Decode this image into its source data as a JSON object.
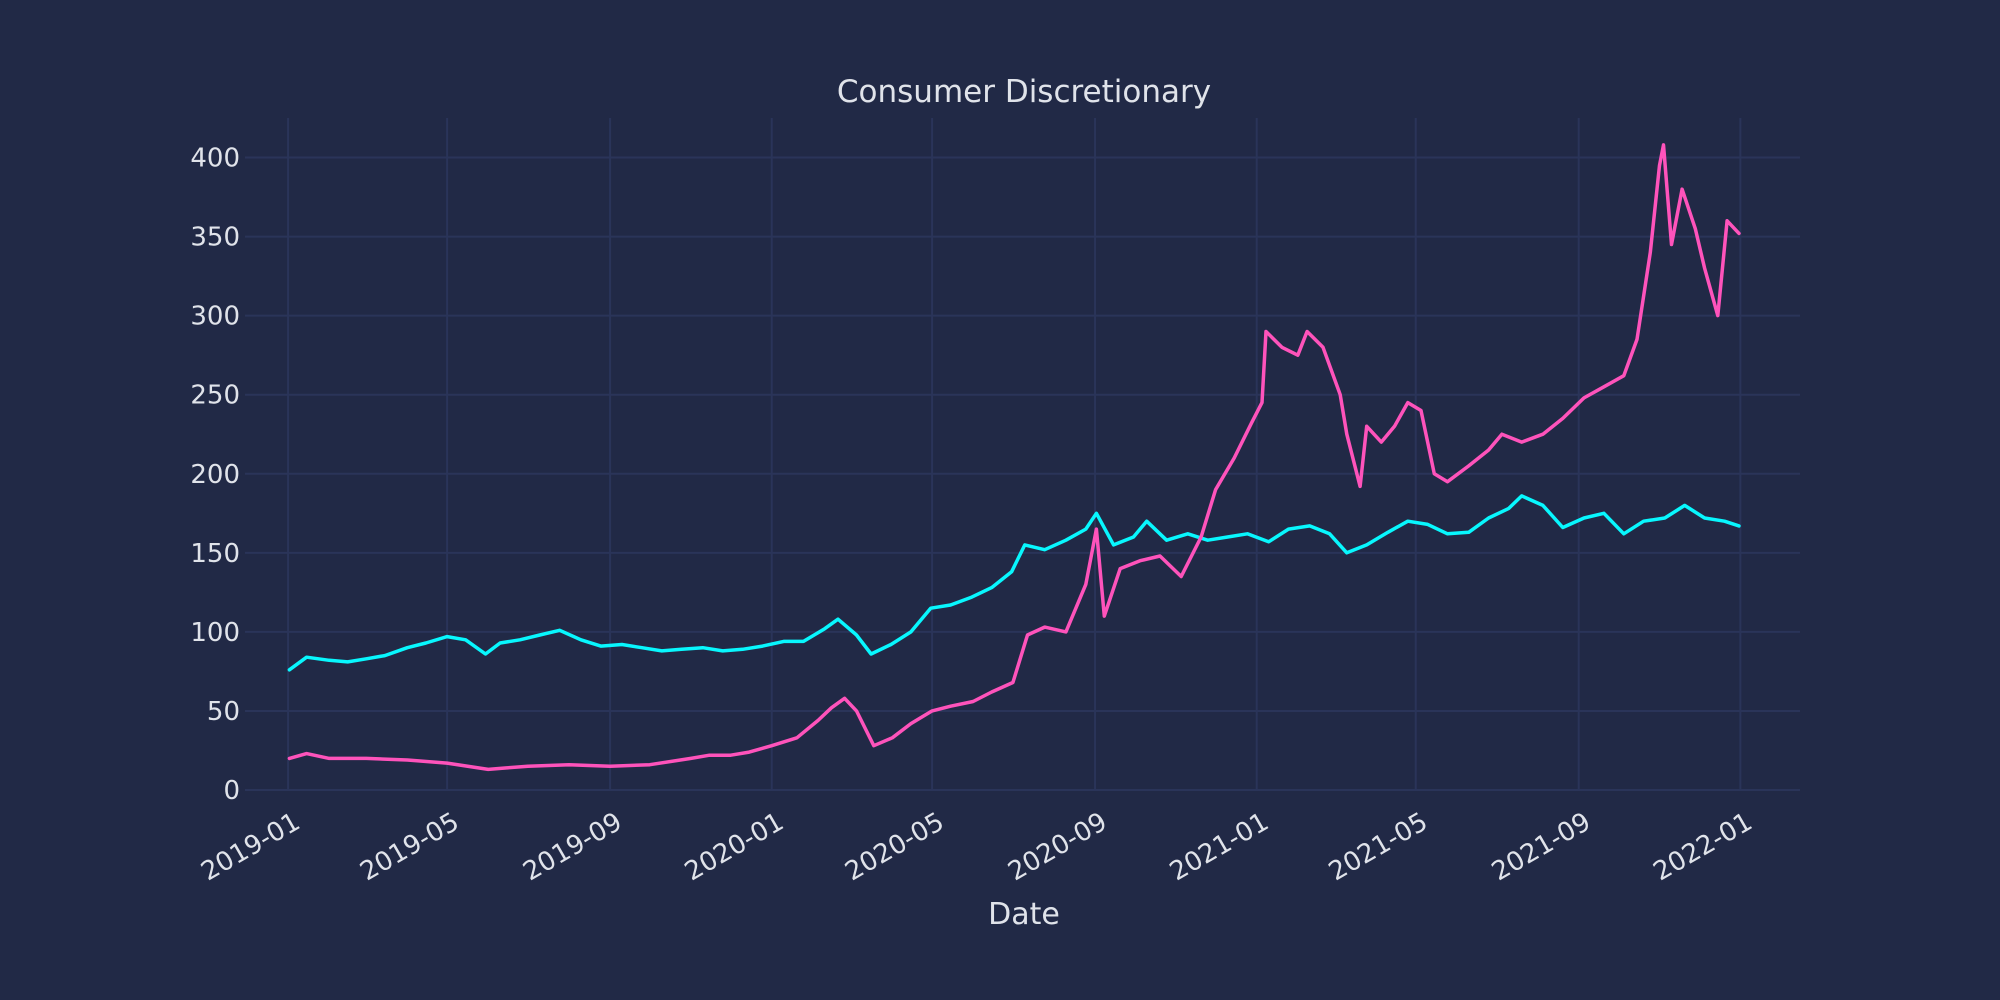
{
  "theme": {
    "background": "#212946",
    "grid": "#2A3459",
    "text": "#E0E3EA"
  },
  "chart_data": {
    "type": "line",
    "title": "Consumer Discretionary",
    "xlabel": "Date",
    "ylabel": "",
    "ylim": [
      0,
      425
    ],
    "xlim": [
      "2018-12-01",
      "2022-02-15"
    ],
    "x_ticks": [
      "2019-01",
      "2019-05",
      "2019-09",
      "2020-01",
      "2020-05",
      "2020-09",
      "2021-01",
      "2021-05",
      "2021-09",
      "2022-01"
    ],
    "y_ticks": [
      0,
      50,
      100,
      150,
      200,
      250,
      300,
      350,
      400
    ],
    "grid": true,
    "legend": "none",
    "series": [
      {
        "color": "#08F7FE",
        "points": [
          [
            "2019-01-02",
            76
          ],
          [
            "2019-01-15",
            84
          ],
          [
            "2019-02-01",
            82
          ],
          [
            "2019-02-15",
            81
          ],
          [
            "2019-03-01",
            83
          ],
          [
            "2019-03-15",
            85
          ],
          [
            "2019-04-01",
            90
          ],
          [
            "2019-04-15",
            93
          ],
          [
            "2019-05-01",
            97
          ],
          [
            "2019-05-15",
            95
          ],
          [
            "2019-05-30",
            86
          ],
          [
            "2019-06-10",
            93
          ],
          [
            "2019-06-25",
            95
          ],
          [
            "2019-07-10",
            98
          ],
          [
            "2019-07-25",
            101
          ],
          [
            "2019-08-10",
            95
          ],
          [
            "2019-08-25",
            91
          ],
          [
            "2019-09-10",
            92
          ],
          [
            "2019-09-25",
            90
          ],
          [
            "2019-10-10",
            88
          ],
          [
            "2019-10-25",
            89
          ],
          [
            "2019-11-10",
            90
          ],
          [
            "2019-11-25",
            88
          ],
          [
            "2019-12-10",
            89
          ],
          [
            "2019-12-25",
            91
          ],
          [
            "2020-01-10",
            94
          ],
          [
            "2020-01-25",
            94
          ],
          [
            "2020-02-10",
            102
          ],
          [
            "2020-02-20",
            108
          ],
          [
            "2020-03-05",
            98
          ],
          [
            "2020-03-16",
            86
          ],
          [
            "2020-03-31",
            92
          ],
          [
            "2020-04-15",
            100
          ],
          [
            "2020-04-30",
            115
          ],
          [
            "2020-05-15",
            117
          ],
          [
            "2020-05-31",
            122
          ],
          [
            "2020-06-15",
            128
          ],
          [
            "2020-06-30",
            138
          ],
          [
            "2020-07-10",
            155
          ],
          [
            "2020-07-25",
            152
          ],
          [
            "2020-08-10",
            158
          ],
          [
            "2020-08-25",
            165
          ],
          [
            "2020-09-02",
            175
          ],
          [
            "2020-09-15",
            155
          ],
          [
            "2020-09-30",
            160
          ],
          [
            "2020-10-10",
            170
          ],
          [
            "2020-10-25",
            158
          ],
          [
            "2020-11-10",
            162
          ],
          [
            "2020-11-25",
            158
          ],
          [
            "2020-12-10",
            160
          ],
          [
            "2020-12-25",
            162
          ],
          [
            "2021-01-10",
            157
          ],
          [
            "2021-01-25",
            165
          ],
          [
            "2021-02-10",
            167
          ],
          [
            "2021-02-25",
            162
          ],
          [
            "2021-03-10",
            150
          ],
          [
            "2021-03-25",
            155
          ],
          [
            "2021-04-10",
            163
          ],
          [
            "2021-04-25",
            170
          ],
          [
            "2021-05-10",
            168
          ],
          [
            "2021-05-25",
            162
          ],
          [
            "2021-06-10",
            163
          ],
          [
            "2021-06-25",
            172
          ],
          [
            "2021-07-10",
            178
          ],
          [
            "2021-07-20",
            186
          ],
          [
            "2021-08-05",
            180
          ],
          [
            "2021-08-20",
            166
          ],
          [
            "2021-09-05",
            172
          ],
          [
            "2021-09-20",
            175
          ],
          [
            "2021-10-05",
            162
          ],
          [
            "2021-10-20",
            170
          ],
          [
            "2021-11-05",
            172
          ],
          [
            "2021-11-20",
            180
          ],
          [
            "2021-12-05",
            172
          ],
          [
            "2021-12-20",
            170
          ],
          [
            "2021-12-31",
            167
          ]
        ]
      },
      {
        "color": "#FE53BB",
        "points": [
          [
            "2019-01-02",
            20
          ],
          [
            "2019-01-15",
            23
          ],
          [
            "2019-02-01",
            20
          ],
          [
            "2019-03-01",
            20
          ],
          [
            "2019-04-01",
            19
          ],
          [
            "2019-05-01",
            17
          ],
          [
            "2019-06-01",
            13
          ],
          [
            "2019-06-15",
            14
          ],
          [
            "2019-07-01",
            15
          ],
          [
            "2019-08-01",
            16
          ],
          [
            "2019-09-01",
            15
          ],
          [
            "2019-10-01",
            16
          ],
          [
            "2019-11-01",
            20
          ],
          [
            "2019-11-15",
            22
          ],
          [
            "2019-12-01",
            22
          ],
          [
            "2019-12-15",
            24
          ],
          [
            "2020-01-01",
            28
          ],
          [
            "2020-01-20",
            33
          ],
          [
            "2020-02-05",
            44
          ],
          [
            "2020-02-15",
            52
          ],
          [
            "2020-02-25",
            58
          ],
          [
            "2020-03-05",
            50
          ],
          [
            "2020-03-18",
            28
          ],
          [
            "2020-04-01",
            33
          ],
          [
            "2020-04-15",
            42
          ],
          [
            "2020-05-01",
            50
          ],
          [
            "2020-05-15",
            53
          ],
          [
            "2020-06-01",
            56
          ],
          [
            "2020-06-15",
            62
          ],
          [
            "2020-07-01",
            68
          ],
          [
            "2020-07-12",
            98
          ],
          [
            "2020-07-25",
            103
          ],
          [
            "2020-08-10",
            100
          ],
          [
            "2020-08-25",
            130
          ],
          [
            "2020-09-02",
            165
          ],
          [
            "2020-09-08",
            110
          ],
          [
            "2020-09-20",
            140
          ],
          [
            "2020-10-05",
            145
          ],
          [
            "2020-10-20",
            148
          ],
          [
            "2020-11-05",
            135
          ],
          [
            "2020-11-20",
            160
          ],
          [
            "2020-12-01",
            190
          ],
          [
            "2020-12-15",
            210
          ],
          [
            "2020-12-28",
            232
          ],
          [
            "2021-01-05",
            245
          ],
          [
            "2021-01-08",
            290
          ],
          [
            "2021-01-20",
            280
          ],
          [
            "2021-02-01",
            275
          ],
          [
            "2021-02-08",
            290
          ],
          [
            "2021-02-20",
            280
          ],
          [
            "2021-03-05",
            250
          ],
          [
            "2021-03-10",
            225
          ],
          [
            "2021-03-20",
            192
          ],
          [
            "2021-03-25",
            230
          ],
          [
            "2021-04-05",
            220
          ],
          [
            "2021-04-15",
            230
          ],
          [
            "2021-04-25",
            245
          ],
          [
            "2021-05-05",
            240
          ],
          [
            "2021-05-15",
            200
          ],
          [
            "2021-05-25",
            195
          ],
          [
            "2021-06-10",
            205
          ],
          [
            "2021-06-25",
            215
          ],
          [
            "2021-07-05",
            225
          ],
          [
            "2021-07-20",
            220
          ],
          [
            "2021-08-05",
            225
          ],
          [
            "2021-08-20",
            235
          ],
          [
            "2021-09-05",
            248
          ],
          [
            "2021-09-20",
            255
          ],
          [
            "2021-10-05",
            262
          ],
          [
            "2021-10-15",
            285
          ],
          [
            "2021-10-25",
            340
          ],
          [
            "2021-11-01",
            395
          ],
          [
            "2021-11-04",
            408
          ],
          [
            "2021-11-10",
            345
          ],
          [
            "2021-11-18",
            380
          ],
          [
            "2021-11-28",
            355
          ],
          [
            "2021-12-05",
            330
          ],
          [
            "2021-12-15",
            300
          ],
          [
            "2021-12-22",
            360
          ],
          [
            "2021-12-31",
            352
          ]
        ]
      }
    ]
  }
}
